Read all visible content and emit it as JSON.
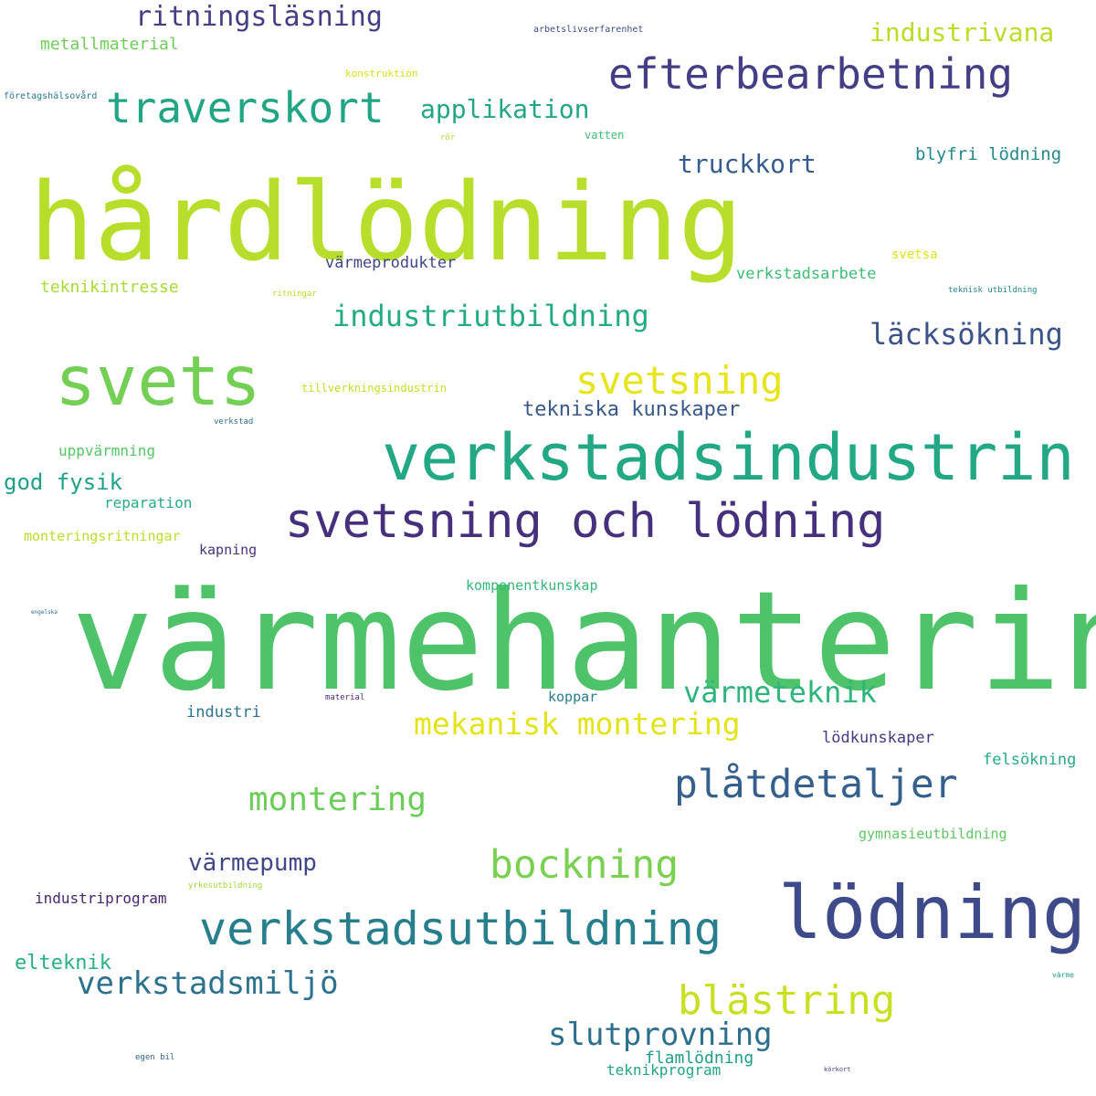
{
  "words": [
    {
      "text": "värmehantering",
      "color": "#4fc369"
    },
    {
      "text": "hårdlödning",
      "color": "#b6de2b"
    },
    {
      "text": "verkstadsindustrin",
      "color": "#22a884"
    },
    {
      "text": "lödning",
      "color": "#3e4a89"
    },
    {
      "text": "svets",
      "color": "#74d055"
    },
    {
      "text": "svetsning och lödning",
      "color": "#462f7c"
    },
    {
      "text": "verkstadsutbildning",
      "color": "#277f8e"
    },
    {
      "text": "efterbearbetning",
      "color": "#433e85"
    },
    {
      "text": "traverskort",
      "color": "#21a585"
    },
    {
      "text": "plåtdetaljer",
      "color": "#355f8d"
    },
    {
      "text": "blästring",
      "color": "#c8e020"
    },
    {
      "text": "bockning",
      "color": "#7ad151"
    },
    {
      "text": "svetsning",
      "color": "#e7e419"
    },
    {
      "text": "verkstadsmiljö",
      "color": "#2c728e"
    },
    {
      "text": "slutprovning",
      "color": "#2d708e"
    },
    {
      "text": "montering",
      "color": "#6ccd5a"
    },
    {
      "text": "industriutbildning",
      "color": "#25ab82"
    },
    {
      "text": "mekanisk montering",
      "color": "#e2e418"
    },
    {
      "text": "värmeteknik",
      "color": "#2fb47c"
    },
    {
      "text": "läcksökning",
      "color": "#3b528b"
    },
    {
      "text": "ritningsläsning",
      "color": "#423f85"
    },
    {
      "text": "applikation",
      "color": "#22a785"
    },
    {
      "text": "truckkort",
      "color": "#365c8d"
    },
    {
      "text": "industrivana",
      "color": "#b8de29"
    },
    {
      "text": "värmepump",
      "color": "#404688"
    },
    {
      "text": "god fysik",
      "color": "#1fa088"
    },
    {
      "text": "tekniska kunskaper",
      "color": "#38588c"
    },
    {
      "text": "elteknik",
      "color": "#2ab07f"
    },
    {
      "text": "blyfri lödning",
      "color": "#23898e"
    },
    {
      "text": "metallmaterial",
      "color": "#6ece58"
    },
    {
      "text": "teknikintresse",
      "color": "#a8db34"
    },
    {
      "text": "värmeprodukter",
      "color": "#3f4788"
    },
    {
      "text": "verkstadsarbete",
      "color": "#3dbc74"
    },
    {
      "text": "uppvärmning",
      "color": "#56c667"
    },
    {
      "text": "reparation",
      "color": "#28ae80"
    },
    {
      "text": "monteringsritningar",
      "color": "#bade28"
    },
    {
      "text": "kapning",
      "color": "#453581"
    },
    {
      "text": "komponentkunskap",
      "color": "#35b779"
    },
    {
      "text": "industri",
      "color": "#2c738e"
    },
    {
      "text": "koppar",
      "color": "#287c8e"
    },
    {
      "text": "lödkunskaper",
      "color": "#443a83"
    },
    {
      "text": "felsökning",
      "color": "#27ad81"
    },
    {
      "text": "gymnasieutbildning",
      "color": "#5ec962"
    },
    {
      "text": "industriprogram",
      "color": "#482475"
    },
    {
      "text": "flamlödning",
      "color": "#1f9e89"
    },
    {
      "text": "teknikprogram",
      "color": "#20a486"
    },
    {
      "text": "svetsa",
      "color": "#dde318"
    },
    {
      "text": "tillverkningsindustrin",
      "color": "#c0df25"
    },
    {
      "text": "arbetslivserfarenhet",
      "color": "#3e4c8a"
    },
    {
      "text": "konstruktion",
      "color": "#d2e21b"
    },
    {
      "text": "företagshälsovård",
      "color": "#2a788e"
    },
    {
      "text": "rör",
      "color": "#addc30"
    },
    {
      "text": "vatten",
      "color": "#42be71"
    },
    {
      "text": "ritningar",
      "color": "#b5de2b"
    },
    {
      "text": "teknisk utbildning",
      "color": "#24868e"
    },
    {
      "text": "verkstad",
      "color": "#2d718e"
    },
    {
      "text": "yrkesutbildning",
      "color": "#a0da39"
    },
    {
      "text": "material",
      "color": "#472d7b"
    },
    {
      "text": "egen bil",
      "color": "#31668e"
    },
    {
      "text": "körkort",
      "color": "#414487"
    },
    {
      "text": "värme",
      "color": "#20a386"
    },
    {
      "text": "engelska",
      "color": "#31678e"
    }
  ]
}
